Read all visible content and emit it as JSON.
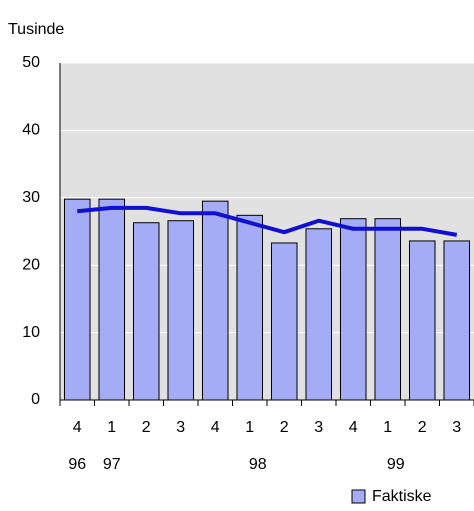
{
  "chart_data": {
    "type": "bar",
    "y_label": "Tusinde",
    "categories": [
      "4",
      "1",
      "2",
      "3",
      "4",
      "1",
      "2",
      "3",
      "4",
      "1",
      "2",
      "3"
    ],
    "years": [
      "96",
      "97",
      null,
      null,
      null,
      "98",
      null,
      null,
      null,
      "99",
      null,
      null
    ],
    "series": [
      {
        "name": "Faktiske",
        "type": "bar",
        "color": "#a3acf5",
        "values": [
          29.8,
          29.8,
          26.3,
          26.6,
          29.5,
          27.4,
          23.3,
          25.4,
          26.9,
          26.9,
          23.6,
          23.6
        ]
      },
      {
        "type": "line",
        "color": "#1010d0",
        "values": [
          28.0,
          28.5,
          28.5,
          27.7,
          27.7,
          26.3,
          24.9,
          26.6,
          25.4,
          25.4,
          25.4,
          24.5
        ]
      }
    ],
    "ylim": [
      0,
      50
    ],
    "yticks": [
      0,
      10,
      20,
      30,
      40,
      50
    ],
    "grid": true
  }
}
